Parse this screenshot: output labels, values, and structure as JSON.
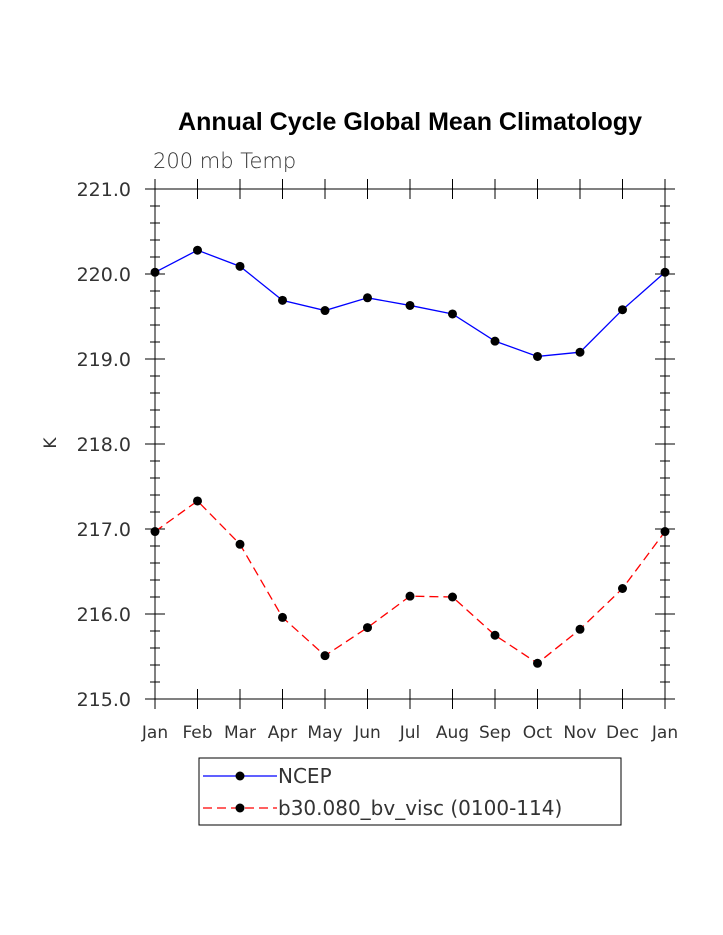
{
  "chart_data": {
    "type": "line",
    "title": "Annual Cycle Global Mean Climatology",
    "subtitle": "200 mb Temp",
    "ylabel": "K",
    "xlabel": "",
    "categories": [
      "Jan",
      "Feb",
      "Mar",
      "Apr",
      "May",
      "Jun",
      "Jul",
      "Aug",
      "Sep",
      "Oct",
      "Nov",
      "Dec",
      "Jan"
    ],
    "ylim": [
      215.0,
      221.0
    ],
    "yticks": [
      "215.0",
      "216.0",
      "217.0",
      "218.0",
      "219.0",
      "220.0",
      "221.0"
    ],
    "legend_position": "bottom",
    "series": [
      {
        "name": "NCEP",
        "color": "#0000ff",
        "dash": "solid",
        "values": [
          220.02,
          220.28,
          220.09,
          219.69,
          219.57,
          219.72,
          219.63,
          219.53,
          219.21,
          219.03,
          219.08,
          219.58,
          220.02
        ]
      },
      {
        "name": "b30.080_bv_visc (0100-114)",
        "color": "#ff0000",
        "dash": "dashed",
        "values": [
          216.97,
          217.33,
          216.82,
          215.96,
          215.51,
          215.84,
          216.21,
          216.2,
          215.75,
          215.42,
          215.82,
          216.3,
          216.97
        ]
      }
    ]
  }
}
